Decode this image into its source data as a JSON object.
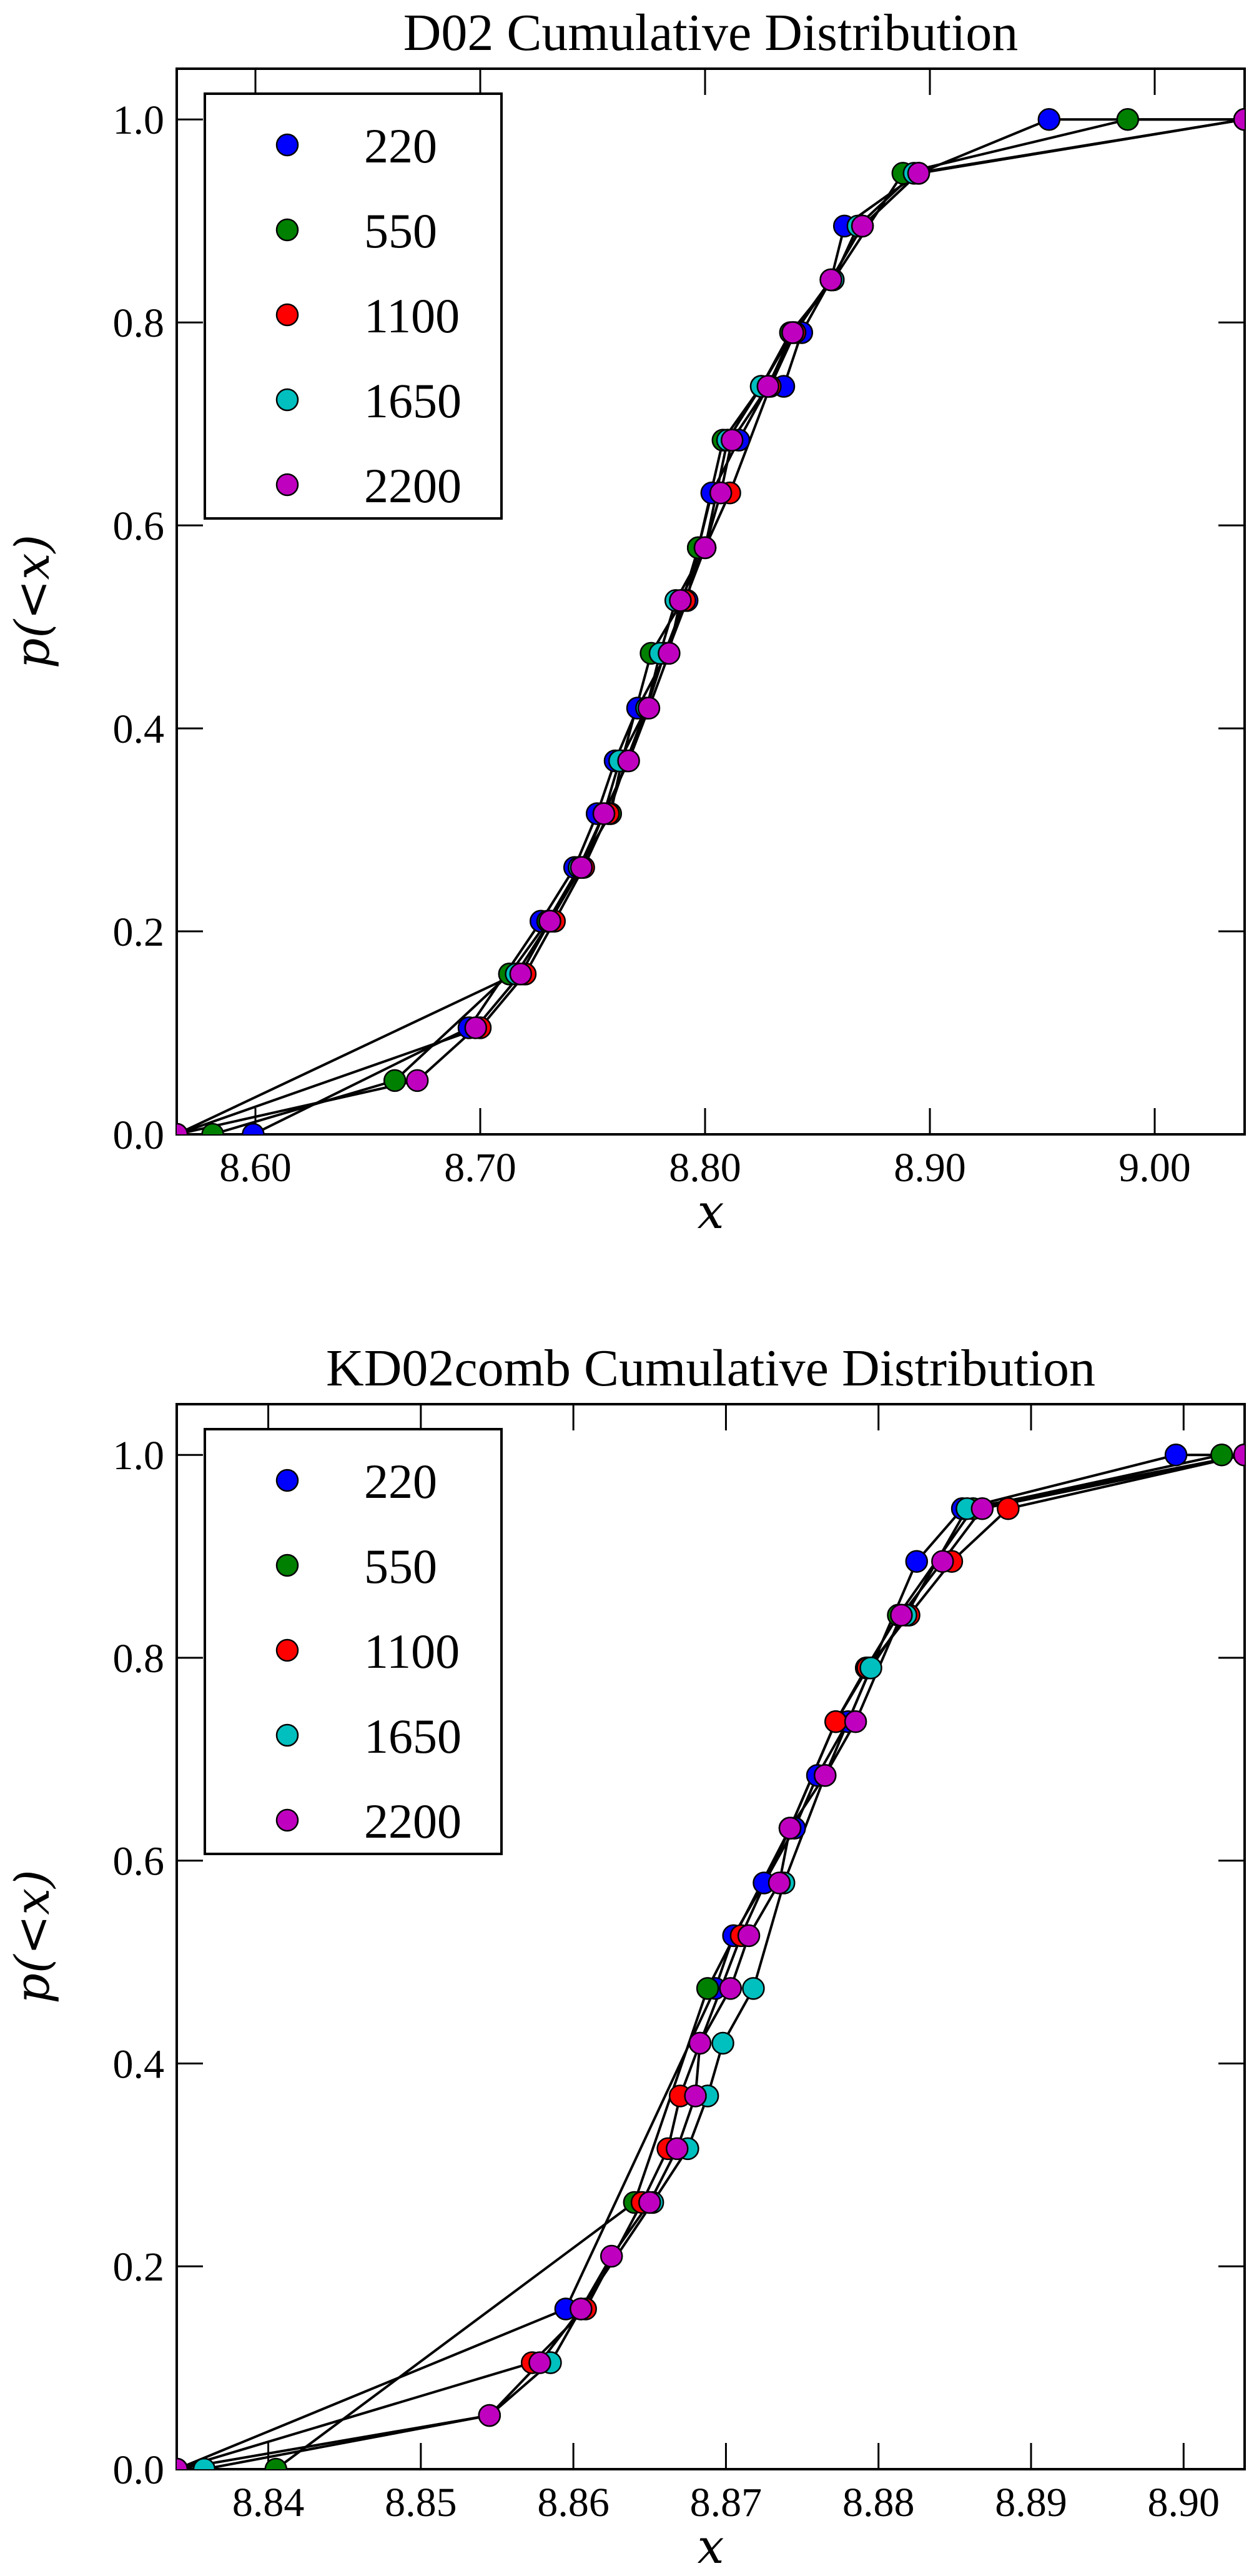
{
  "chart_data": [
    {
      "type": "line",
      "title": "D02 Cumulative Distribution",
      "xlabel": "x",
      "ylabel": "p(<x)",
      "xlim": [
        8.565,
        9.04
      ],
      "ylim": [
        0.0,
        1.05
      ],
      "xticks": [
        8.6,
        8.7,
        8.8,
        8.9,
        9.0
      ],
      "xtick_labels": [
        "8.60",
        "8.70",
        "8.80",
        "8.90",
        "9.00"
      ],
      "yticks": [
        0.0,
        0.2,
        0.4,
        0.6,
        0.8,
        1.0
      ],
      "ytick_labels": [
        "0.0",
        "0.2",
        "0.4",
        "0.6",
        "0.8",
        "1.0"
      ],
      "grid": false,
      "legend_position": "top-left",
      "series": [
        {
          "name": "220",
          "color": "#0000ff",
          "x": [
            8.565,
            8.599,
            8.695,
            8.727,
            8.742,
            8.752,
            8.76,
            8.77,
            8.783,
            8.792,
            8.797,
            8.803,
            8.815,
            8.828,
            8.835,
            8.843,
            8.856,
            8.862,
            8.895,
            8.953,
            9.04
          ],
          "y": [
            0.0,
            0.0,
            0.105,
            0.21,
            0.263,
            0.316,
            0.368,
            0.42,
            0.474,
            0.526,
            0.578,
            0.632,
            0.684,
            0.737,
            0.737,
            0.79,
            0.842,
            0.895,
            0.947,
            1.0,
            1.0
          ]
        },
        {
          "name": "550",
          "color": "#008000",
          "x": [
            8.565,
            8.581,
            8.662,
            8.713,
            8.73,
            8.744,
            8.758,
            8.763,
            8.776,
            8.79,
            8.797,
            8.808,
            8.825,
            8.838,
            8.857,
            8.888,
            8.988,
            9.04
          ],
          "y": [
            0.0,
            0.0,
            0.053,
            0.158,
            0.21,
            0.263,
            0.316,
            0.368,
            0.474,
            0.526,
            0.578,
            0.684,
            0.737,
            0.79,
            0.842,
            0.947,
            1.0,
            1.0
          ]
        },
        {
          "name": "1100",
          "color": "#ff0000",
          "x": [
            8.565,
            8.7,
            8.72,
            8.733,
            8.746,
            8.757,
            8.765,
            8.774,
            8.782,
            8.791,
            8.8,
            8.811,
            8.829,
            8.84,
            8.856,
            8.87,
            8.895,
            9.04
          ],
          "y": [
            0.0,
            0.105,
            0.158,
            0.21,
            0.263,
            0.316,
            0.368,
            0.42,
            0.474,
            0.526,
            0.578,
            0.632,
            0.737,
            0.79,
            0.842,
            0.895,
            0.947,
            1.0
          ]
        },
        {
          "name": "1650",
          "color": "#00bfbf",
          "x": [
            8.565,
            8.716,
            8.731,
            8.744,
            8.755,
            8.762,
            8.774,
            8.78,
            8.787,
            8.8,
            8.81,
            8.825,
            8.839,
            8.857,
            8.868,
            8.893,
            9.04
          ],
          "y": [
            0.0,
            0.158,
            0.21,
            0.263,
            0.316,
            0.368,
            0.42,
            0.474,
            0.526,
            0.578,
            0.684,
            0.737,
            0.79,
            0.842,
            0.895,
            0.947,
            1.0
          ]
        },
        {
          "name": "2200",
          "color": "#bf00bf",
          "x": [
            8.565,
            8.672,
            8.698,
            8.718,
            8.731,
            8.745,
            8.755,
            8.766,
            8.775,
            8.784,
            8.789,
            8.8,
            8.807,
            8.812,
            8.828,
            8.839,
            8.856,
            8.87,
            8.895,
            9.04
          ],
          "y": [
            0.0,
            0.053,
            0.105,
            0.158,
            0.21,
            0.263,
            0.316,
            0.368,
            0.42,
            0.474,
            0.526,
            0.578,
            0.632,
            0.684,
            0.737,
            0.79,
            0.842,
            0.895,
            0.947,
            1.0
          ]
        }
      ]
    },
    {
      "type": "line",
      "title": "KD02comb Cumulative Distribution",
      "xlabel": "x",
      "ylabel": "p(<x)",
      "xlim": [
        8.834,
        8.904
      ],
      "ylim": [
        0.0,
        1.05
      ],
      "xticks": [
        8.84,
        8.85,
        8.86,
        8.87,
        8.88,
        8.89,
        8.9
      ],
      "xtick_labels": [
        "8.84",
        "8.85",
        "8.86",
        "8.87",
        "8.88",
        "8.89",
        "8.90"
      ],
      "yticks": [
        0.0,
        0.2,
        0.4,
        0.6,
        0.8,
        1.0
      ],
      "ytick_labels": [
        "0.0",
        "0.2",
        "0.4",
        "0.6",
        "0.8",
        "1.0"
      ],
      "grid": false,
      "legend_position": "top-left",
      "series": [
        {
          "name": "220",
          "color": "#0000ff",
          "x": [
            8.834,
            8.8595,
            8.8693,
            8.8705,
            8.8725,
            8.8745,
            8.876,
            8.878,
            8.8825,
            8.8855,
            8.8995,
            8.904
          ],
          "y": [
            0.0,
            0.158,
            0.474,
            0.526,
            0.578,
            0.632,
            0.684,
            0.737,
            0.895,
            0.947,
            1.0,
            1.0
          ]
        },
        {
          "name": "550",
          "color": "#008000",
          "x": [
            8.834,
            8.8405,
            8.864,
            8.8688,
            8.8742,
            8.8772,
            8.8792,
            8.8813,
            8.8862,
            8.9025,
            8.904
          ],
          "y": [
            0.0,
            0.0,
            0.263,
            0.474,
            0.632,
            0.737,
            0.79,
            0.842,
            0.947,
            1.0,
            1.0
          ]
        },
        {
          "name": "1100",
          "color": "#ff0000",
          "x": [
            8.834,
            8.8573,
            8.8608,
            8.8645,
            8.8662,
            8.867,
            8.8683,
            8.871,
            8.8742,
            8.8772,
            8.8793,
            8.882,
            8.8848,
            8.8885,
            8.904
          ],
          "y": [
            0.0,
            0.105,
            0.158,
            0.263,
            0.316,
            0.368,
            0.42,
            0.526,
            0.632,
            0.737,
            0.79,
            0.842,
            0.895,
            0.947,
            1.0
          ]
        },
        {
          "name": "1650",
          "color": "#00bfbf",
          "x": [
            8.834,
            8.8358,
            8.8545,
            8.8585,
            8.8605,
            8.8652,
            8.8675,
            8.8688,
            8.8698,
            8.8718,
            8.8738,
            8.8765,
            8.8795,
            8.8818,
            8.8858,
            8.904
          ],
          "y": [
            0.0,
            0.0,
            0.053,
            0.105,
            0.158,
            0.263,
            0.316,
            0.368,
            0.42,
            0.474,
            0.578,
            0.684,
            0.79,
            0.842,
            0.947,
            1.0
          ]
        },
        {
          "name": "2200",
          "color": "#bf00bf",
          "x": [
            8.834,
            8.8545,
            8.8578,
            8.8605,
            8.8625,
            8.865,
            8.8668,
            8.868,
            8.8683,
            8.8703,
            8.8715,
            8.8735,
            8.8742,
            8.8765,
            8.8785,
            8.8815,
            8.8842,
            8.8868,
            8.904
          ],
          "y": [
            0.0,
            0.053,
            0.105,
            0.158,
            0.21,
            0.263,
            0.316,
            0.368,
            0.42,
            0.474,
            0.526,
            0.578,
            0.632,
            0.684,
            0.737,
            0.842,
            0.895,
            0.947,
            1.0
          ]
        }
      ]
    }
  ]
}
